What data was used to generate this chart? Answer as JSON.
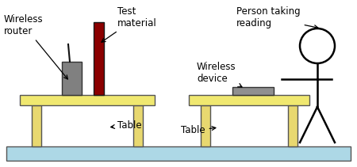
{
  "bg_color": "#ffffff",
  "floor_color": "#add8e6",
  "table_top_color": "#f0e870",
  "table_leg_color": "#e8d870",
  "router_color": "#808080",
  "test_rod_color": "#8b0000",
  "device_color": "#909090",
  "stick_color": "#000000",
  "border_color": "#555555",
  "labels": {
    "wireless_router": "Wireless\nrouter",
    "test_material": "Test\nmaterial",
    "wireless_device": "Wireless\ndevice",
    "person": "Person taking\nreading",
    "table1": "Table",
    "table2": "Table"
  },
  "font_size": 8.5
}
